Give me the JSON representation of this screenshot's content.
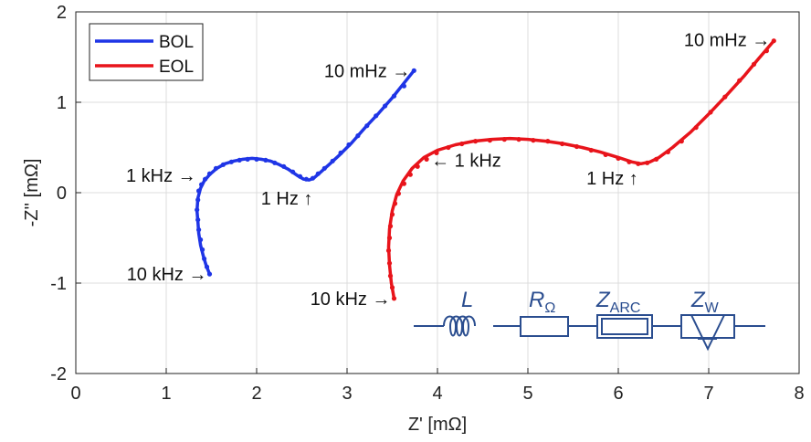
{
  "chart_data": {
    "type": "line",
    "xlabel": "Z' [mΩ]",
    "ylabel": "-Z'' [mΩ]",
    "xlim": [
      0,
      8
    ],
    "ylim": [
      -2,
      2
    ],
    "x_ticks": [
      "0",
      "1",
      "2",
      "3",
      "4",
      "5",
      "6",
      "7",
      "8"
    ],
    "y_ticks": [
      "-2",
      "-1",
      "0",
      "1",
      "2"
    ],
    "grid": true,
    "legend_position": "top-left",
    "series": [
      {
        "name": "BOL",
        "color": "#1f35e6",
        "fit": [
          [
            1.48,
            -0.9
          ],
          [
            1.44,
            -0.8
          ],
          [
            1.41,
            -0.7
          ],
          [
            1.38,
            -0.58
          ],
          [
            1.36,
            -0.45
          ],
          [
            1.35,
            -0.32
          ],
          [
            1.34,
            -0.2
          ],
          [
            1.35,
            -0.06
          ],
          [
            1.38,
            0.05
          ],
          [
            1.42,
            0.13
          ],
          [
            1.48,
            0.2
          ],
          [
            1.56,
            0.27
          ],
          [
            1.65,
            0.32
          ],
          [
            1.75,
            0.35
          ],
          [
            1.85,
            0.37
          ],
          [
            1.95,
            0.38
          ],
          [
            2.05,
            0.37
          ],
          [
            2.15,
            0.35
          ],
          [
            2.25,
            0.31
          ],
          [
            2.35,
            0.26
          ],
          [
            2.45,
            0.19
          ],
          [
            2.52,
            0.15
          ],
          [
            2.58,
            0.14
          ],
          [
            2.63,
            0.16
          ],
          [
            2.7,
            0.22
          ],
          [
            2.8,
            0.31
          ],
          [
            2.92,
            0.42
          ],
          [
            3.05,
            0.55
          ],
          [
            3.2,
            0.72
          ],
          [
            3.35,
            0.88
          ],
          [
            3.5,
            1.05
          ],
          [
            3.62,
            1.2
          ],
          [
            3.74,
            1.35
          ]
        ],
        "points": [
          [
            1.48,
            -0.9
          ],
          [
            1.45,
            -0.82
          ],
          [
            1.42,
            -0.73
          ],
          [
            1.4,
            -0.63
          ],
          [
            1.38,
            -0.52
          ],
          [
            1.36,
            -0.41
          ],
          [
            1.35,
            -0.3
          ],
          [
            1.34,
            -0.19
          ],
          [
            1.35,
            -0.08
          ],
          [
            1.36,
            0.02
          ],
          [
            1.39,
            0.09
          ],
          [
            1.43,
            0.15
          ],
          [
            1.48,
            0.21
          ],
          [
            1.55,
            0.27
          ],
          [
            1.63,
            0.31
          ],
          [
            1.72,
            0.34
          ],
          [
            1.81,
            0.36
          ],
          [
            1.9,
            0.37
          ],
          [
            2.0,
            0.37
          ],
          [
            2.1,
            0.36
          ],
          [
            2.2,
            0.33
          ],
          [
            2.3,
            0.29
          ],
          [
            2.4,
            0.23
          ],
          [
            2.48,
            0.18
          ],
          [
            2.55,
            0.15
          ],
          [
            2.62,
            0.16
          ],
          [
            2.68,
            0.21
          ],
          [
            2.75,
            0.27
          ],
          [
            2.84,
            0.35
          ],
          [
            2.93,
            0.44
          ],
          [
            3.02,
            0.53
          ],
          [
            3.12,
            0.63
          ],
          [
            3.22,
            0.74
          ],
          [
            3.32,
            0.85
          ],
          [
            3.42,
            0.96
          ],
          [
            3.52,
            1.07
          ],
          [
            3.63,
            1.18
          ],
          [
            3.74,
            1.35
          ]
        ]
      },
      {
        "name": "EOL",
        "color": "#e8141b",
        "fit": [
          [
            3.52,
            -1.17
          ],
          [
            3.49,
            -1.0
          ],
          [
            3.47,
            -0.8
          ],
          [
            3.46,
            -0.6
          ],
          [
            3.47,
            -0.4
          ],
          [
            3.5,
            -0.2
          ],
          [
            3.55,
            -0.02
          ],
          [
            3.62,
            0.13
          ],
          [
            3.72,
            0.27
          ],
          [
            3.85,
            0.39
          ],
          [
            4.0,
            0.47
          ],
          [
            4.2,
            0.53
          ],
          [
            4.4,
            0.57
          ],
          [
            4.6,
            0.59
          ],
          [
            4.8,
            0.6
          ],
          [
            5.0,
            0.59
          ],
          [
            5.2,
            0.57
          ],
          [
            5.4,
            0.54
          ],
          [
            5.6,
            0.5
          ],
          [
            5.8,
            0.45
          ],
          [
            6.0,
            0.39
          ],
          [
            6.15,
            0.34
          ],
          [
            6.25,
            0.32
          ],
          [
            6.35,
            0.34
          ],
          [
            6.45,
            0.39
          ],
          [
            6.6,
            0.5
          ],
          [
            6.8,
            0.67
          ],
          [
            7.0,
            0.87
          ],
          [
            7.2,
            1.08
          ],
          [
            7.4,
            1.3
          ],
          [
            7.55,
            1.48
          ],
          [
            7.72,
            1.68
          ]
        ],
        "points": [
          [
            3.52,
            -1.17
          ],
          [
            3.5,
            -1.05
          ],
          [
            3.48,
            -0.92
          ],
          [
            3.47,
            -0.78
          ],
          [
            3.46,
            -0.64
          ],
          [
            3.47,
            -0.5
          ],
          [
            3.48,
            -0.37
          ],
          [
            3.5,
            -0.24
          ],
          [
            3.53,
            -0.12
          ],
          [
            3.57,
            -0.01
          ],
          [
            3.63,
            0.1
          ],
          [
            3.7,
            0.2
          ],
          [
            3.78,
            0.29
          ],
          [
            3.88,
            0.37
          ],
          [
            3.99,
            0.44
          ],
          [
            4.12,
            0.5
          ],
          [
            4.27,
            0.54
          ],
          [
            4.42,
            0.57
          ],
          [
            4.58,
            0.58
          ],
          [
            4.74,
            0.59
          ],
          [
            4.9,
            0.59
          ],
          [
            5.06,
            0.58
          ],
          [
            5.22,
            0.57
          ],
          [
            5.38,
            0.54
          ],
          [
            5.54,
            0.51
          ],
          [
            5.7,
            0.47
          ],
          [
            5.86,
            0.42
          ],
          [
            6.0,
            0.38
          ],
          [
            6.12,
            0.34
          ],
          [
            6.22,
            0.32
          ],
          [
            6.32,
            0.33
          ],
          [
            6.42,
            0.37
          ],
          [
            6.55,
            0.45
          ],
          [
            6.7,
            0.57
          ],
          [
            6.86,
            0.72
          ],
          [
            7.02,
            0.89
          ],
          [
            7.18,
            1.06
          ],
          [
            7.34,
            1.24
          ],
          [
            7.5,
            1.42
          ],
          [
            7.64,
            1.57
          ],
          [
            7.72,
            1.68
          ]
        ]
      }
    ],
    "annotations": [
      {
        "text": "10 mHz →",
        "x": 3.7,
        "y": 1.35,
        "anchor": "end"
      },
      {
        "text": "1 kHz →",
        "x": 1.33,
        "y": 0.19,
        "anchor": "end"
      },
      {
        "text": "1 Hz ↑",
        "x": 2.62,
        "y": -0.06,
        "anchor": "end"
      },
      {
        "text": "10 kHz →",
        "x": 1.45,
        "y": -0.9,
        "anchor": "end"
      },
      {
        "text": "10 mHz →",
        "x": 7.68,
        "y": 1.69,
        "anchor": "end"
      },
      {
        "text": "← 1 kHz",
        "x": 3.93,
        "y": 0.36,
        "anchor": "start"
      },
      {
        "text": "1 Hz ↑",
        "x": 6.22,
        "y": 0.16,
        "anchor": "end"
      },
      {
        "text": "10 kHz →",
        "x": 3.48,
        "y": -1.17,
        "anchor": "end"
      }
    ],
    "circuit": {
      "labels": [
        {
          "main": "L",
          "sub": ""
        },
        {
          "main": "R",
          "sub": "Ω"
        },
        {
          "main": "Z",
          "sub": "ARC"
        },
        {
          "main": "Z",
          "sub": "W"
        }
      ],
      "color": "#2a4d8f"
    }
  }
}
